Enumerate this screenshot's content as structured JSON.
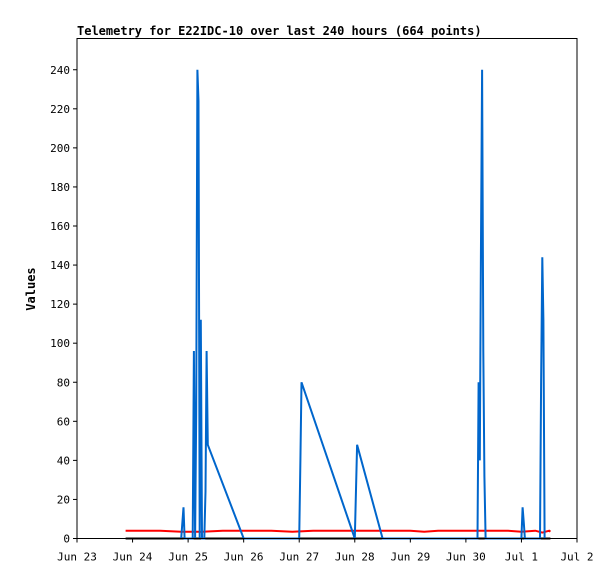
{
  "chart_data": {
    "type": "line",
    "title": "Telemetry for E22IDC-10 over last 240 hours (664 points)",
    "xlabel": "",
    "ylabel": "Values",
    "xlim": [
      "2024-06-23T00:00",
      "2024-07-02T00:00"
    ],
    "ylim": [
      0,
      256
    ],
    "x_ticks": [
      {
        "x": "2024-06-23T00:00",
        "label": "Jun 23"
      },
      {
        "x": "2024-06-24T00:00",
        "label": "Jun 24"
      },
      {
        "x": "2024-06-25T00:00",
        "label": "Jun 25"
      },
      {
        "x": "2024-06-26T00:00",
        "label": "Jun 26"
      },
      {
        "x": "2024-06-27T00:00",
        "label": "Jun 27"
      },
      {
        "x": "2024-06-28T00:00",
        "label": "Jun 28"
      },
      {
        "x": "2024-06-29T00:00",
        "label": "Jun 29"
      },
      {
        "x": "2024-06-30T00:00",
        "label": "Jun 30"
      },
      {
        "x": "2024-07-01T00:00",
        "label": "Jul 1"
      },
      {
        "x": "2024-07-02T00:00",
        "label": "Jul 2"
      }
    ],
    "y_ticks": [
      0,
      20,
      40,
      60,
      80,
      100,
      120,
      140,
      160,
      180,
      200,
      220,
      240
    ],
    "grid": false,
    "legend": "none",
    "series": [
      {
        "color": "#ff0000",
        "points": [
          [
            "2024-06-23T21:00",
            4
          ],
          [
            "2024-06-24T12:00",
            4
          ],
          [
            "2024-06-24T21:00",
            3.5
          ],
          [
            "2024-06-25T06:00",
            3.5
          ],
          [
            "2024-06-25T15:00",
            4
          ],
          [
            "2024-06-26T12:00",
            4
          ],
          [
            "2024-06-26T21:00",
            3.5
          ],
          [
            "2024-06-27T06:00",
            4
          ],
          [
            "2024-06-28T12:00",
            4
          ],
          [
            "2024-06-29T00:00",
            4
          ],
          [
            "2024-06-29T06:00",
            3.5
          ],
          [
            "2024-06-29T12:00",
            4
          ],
          [
            "2024-06-30T12:00",
            4
          ],
          [
            "2024-06-30T18:00",
            4
          ],
          [
            "2024-07-01T00:00",
            3.5
          ],
          [
            "2024-07-01T06:00",
            4
          ],
          [
            "2024-07-01T09:00",
            3
          ],
          [
            "2024-07-01T12:00",
            4
          ],
          [
            "2024-07-01T12:30",
            3.5
          ]
        ]
      },
      {
        "color": "#000000",
        "points": [
          [
            "2024-06-23T21:00",
            0
          ],
          [
            "2024-07-01T12:30",
            0
          ]
        ]
      },
      {
        "color": "#0066cc",
        "points": [
          [
            "2024-06-24T21:00",
            0
          ],
          [
            "2024-06-24T22:00",
            16
          ],
          [
            "2024-06-24T22:30",
            0
          ],
          [
            "2024-06-25T02:00",
            0
          ],
          [
            "2024-06-25T02:30",
            96
          ],
          [
            "2024-06-25T03:00",
            0
          ],
          [
            "2024-06-25T03:30",
            64
          ],
          [
            "2024-06-25T04:00",
            240
          ],
          [
            "2024-06-25T04:30",
            224
          ],
          [
            "2024-06-25T05:00",
            0
          ],
          [
            "2024-06-25T05:30",
            112
          ],
          [
            "2024-06-25T06:00",
            0
          ],
          [
            "2024-06-25T07:00",
            0
          ],
          [
            "2024-06-25T07:30",
            24
          ],
          [
            "2024-06-25T08:00",
            96
          ],
          [
            "2024-06-25T08:30",
            48
          ],
          [
            "2024-06-26T00:00",
            0
          ],
          [
            "2024-06-27T00:00",
            0
          ],
          [
            "2024-06-27T00:30",
            40
          ],
          [
            "2024-06-27T01:00",
            80
          ],
          [
            "2024-06-28T00:00",
            0
          ],
          [
            "2024-06-28T01:00",
            48
          ],
          [
            "2024-06-28T12:00",
            0
          ],
          [
            "2024-06-30T05:00",
            0
          ],
          [
            "2024-06-30T05:30",
            80
          ],
          [
            "2024-06-30T06:00",
            40
          ],
          [
            "2024-06-30T06:30",
            144
          ],
          [
            "2024-06-30T07:00",
            240
          ],
          [
            "2024-06-30T07:30",
            96
          ],
          [
            "2024-06-30T08:00",
            32
          ],
          [
            "2024-06-30T08:30",
            0
          ],
          [
            "2024-07-01T00:00",
            0
          ],
          [
            "2024-07-01T00:30",
            16
          ],
          [
            "2024-07-01T01:00",
            8
          ],
          [
            "2024-07-01T01:30",
            0
          ],
          [
            "2024-07-01T08:00",
            0
          ],
          [
            "2024-07-01T08:30",
            80
          ],
          [
            "2024-07-01T09:00",
            144
          ],
          [
            "2024-07-01T09:30",
            112
          ],
          [
            "2024-07-01T10:00",
            0
          ]
        ]
      }
    ]
  }
}
